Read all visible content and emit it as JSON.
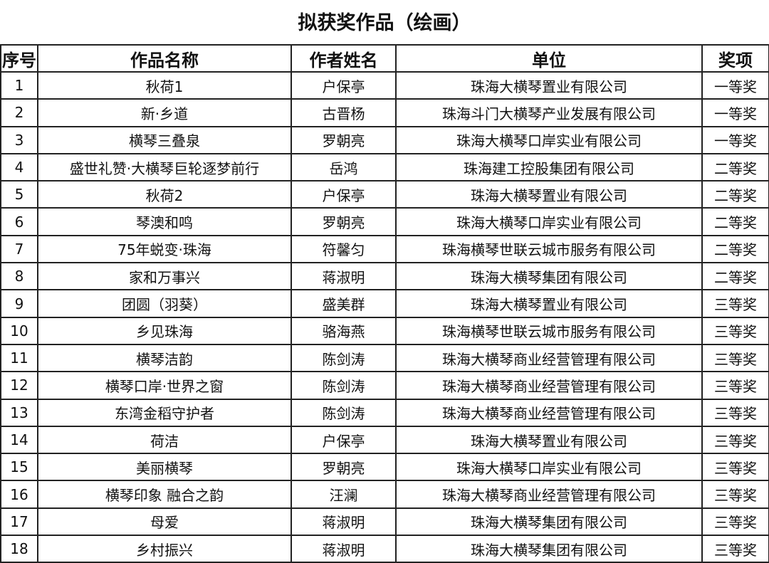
{
  "title": "拟获奖作品（绘画）",
  "columns": [
    "序号",
    "作品名称",
    "作者姓名",
    "单位",
    "奖项"
  ],
  "rows": [
    [
      "1",
      "秋荷1",
      "户保亭",
      "珠海大横琴置业有限公司",
      "一等奖"
    ],
    [
      "2",
      "新·乡道",
      "古晋杨",
      "珠海斗门大横琴产业发展有限公司",
      "一等奖"
    ],
    [
      "3",
      "横琴三叠泉",
      "罗朝亮",
      "珠海大横琴口岸实业有限公司",
      "一等奖"
    ],
    [
      "4",
      "盛世礼赞·大横琴巨轮逐梦前行",
      "岳鸿",
      "珠海建工控股集团有限公司",
      "二等奖"
    ],
    [
      "5",
      "秋荷2",
      "户保亭",
      "珠海大横琴置业有限公司",
      "二等奖"
    ],
    [
      "6",
      "琴澳和鸣",
      "罗朝亮",
      "珠海大横琴口岸实业有限公司",
      "二等奖"
    ],
    [
      "7",
      "75年蜕变·珠海",
      "符馨匀",
      "珠海横琴世联云城市服务有限公司",
      "二等奖"
    ],
    [
      "8",
      "家和万事兴",
      "蒋淑明",
      "珠海大横琴集团有限公司",
      "二等奖"
    ],
    [
      "9",
      "团圆（羽葵）",
      "盛美群",
      "珠海大横琴置业有限公司",
      "三等奖"
    ],
    [
      "10",
      "乡见珠海",
      "骆海燕",
      "珠海横琴世联云城市服务有限公司",
      "三等奖"
    ],
    [
      "11",
      "横琴洁韵",
      "陈剑涛",
      "珠海大横琴商业经营管理有限公司",
      "三等奖"
    ],
    [
      "12",
      "横琴口岸·世界之窗",
      "陈剑涛",
      "珠海大横琴商业经营管理有限公司",
      "三等奖"
    ],
    [
      "13",
      "东湾金稻守护者",
      "陈剑涛",
      "珠海大横琴商业经营管理有限公司",
      "三等奖"
    ],
    [
      "14",
      "荷洁",
      "户保亭",
      "珠海大横琴置业有限公司",
      "三等奖"
    ],
    [
      "15",
      "美丽横琴",
      "罗朝亮",
      "珠海大横琴口岸实业有限公司",
      "三等奖"
    ],
    [
      "16",
      "横琴印象 融合之韵",
      "汪澜",
      "珠海大横琴商业经营管理有限公司",
      "三等奖"
    ],
    [
      "17",
      "母爱",
      "蒋淑明",
      "珠海大横琴集团有限公司",
      "三等奖"
    ],
    [
      "18",
      "乡村振兴",
      "蒋淑明",
      "珠海大横琴集团有限公司",
      "三等奖"
    ]
  ]
}
